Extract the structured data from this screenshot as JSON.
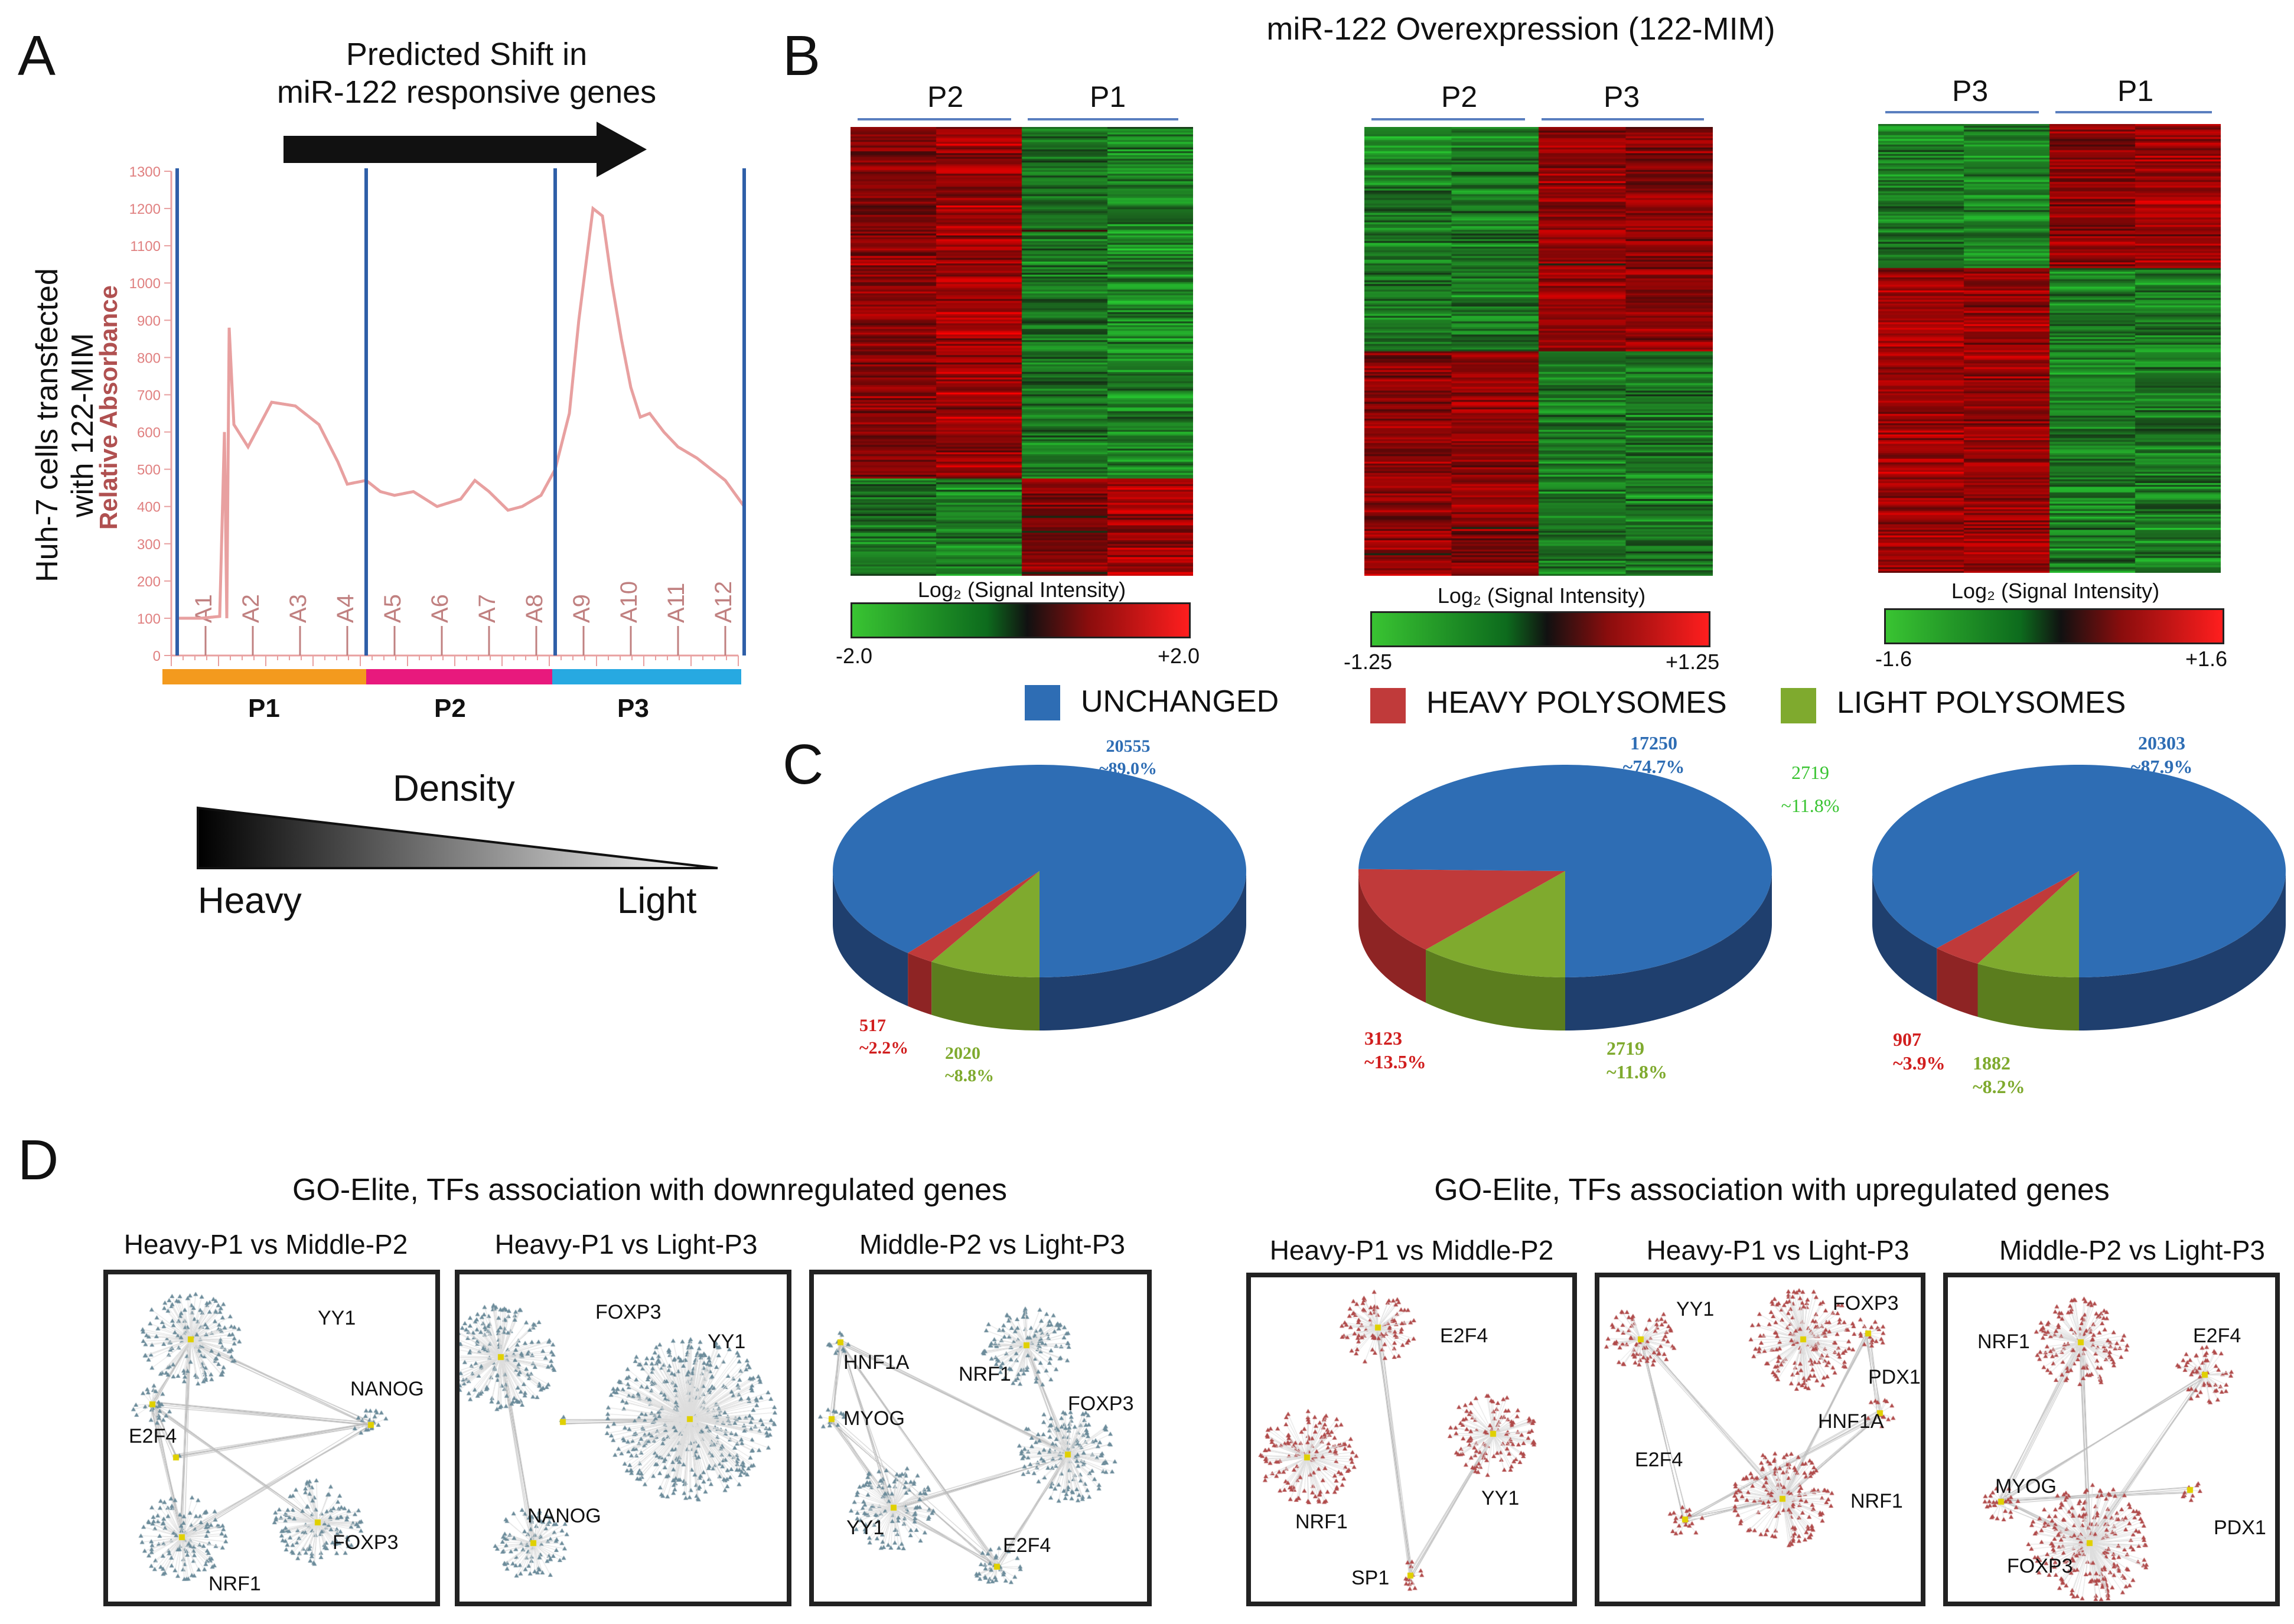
{
  "panelA": {
    "letter": "A",
    "arrow_title_line1": "Predicted Shift in",
    "arrow_title_line2": "miR-122 responsive genes",
    "ylabel_cells_line1": "Huh-7 cells transfected",
    "ylabel_cells_line2": "with 122-MIM",
    "ylabel_abs": "Relative Absorbance",
    "yticks": [
      "1300",
      "1200",
      "1100",
      "1000",
      "900",
      "800",
      "700",
      "600",
      "500",
      "400",
      "300",
      "200",
      "100",
      "0"
    ],
    "fractions": [
      "A1",
      "A2",
      "A3",
      "A4",
      "A5",
      "A6",
      "A7",
      "A8",
      "A9",
      "A10",
      "A11",
      "A12"
    ],
    "pools": [
      "P1",
      "P2",
      "P3"
    ],
    "pool_colors": [
      "#f39a1e",
      "#e8197d",
      "#27a9e1"
    ],
    "density_label": "Density",
    "heavy_label": "Heavy",
    "light_label": "Light",
    "trace_color": "#e8a0a0",
    "divider_color": "#2f5fa8",
    "chart_data": {
      "type": "line",
      "title": "",
      "ylabel": "Relative Absorbance",
      "xlabel": "",
      "ylim": [
        0,
        1300
      ],
      "categories": [
        "A1",
        "A2",
        "A3",
        "A4",
        "A5",
        "A6",
        "A7",
        "A8",
        "A9",
        "A10",
        "A11",
        "A12"
      ],
      "x": [
        0,
        0.5,
        0.9,
        1.0,
        1.05,
        1.1,
        1.2,
        1.5,
        2.0,
        2.5,
        3.0,
        3.4,
        3.6,
        4.0,
        4.3,
        4.6,
        5.0,
        5.5,
        6.0,
        6.3,
        6.6,
        7.0,
        7.3,
        7.7,
        8.0,
        8.3,
        8.5,
        8.8,
        9.0,
        9.2,
        9.4,
        9.6,
        9.8,
        10.0,
        10.3,
        10.6,
        11.0,
        11.3,
        11.6,
        12.0
      ],
      "y": [
        100,
        100,
        105,
        600,
        100,
        880,
        620,
        560,
        680,
        670,
        620,
        520,
        460,
        470,
        440,
        430,
        440,
        400,
        420,
        470,
        440,
        390,
        400,
        430,
        500,
        650,
        900,
        1200,
        1180,
        1000,
        850,
        720,
        640,
        650,
        600,
        560,
        530,
        500,
        470,
        400
      ]
    }
  },
  "panelB": {
    "letter": "B",
    "title": "miR-122 Overexpression (122-MIM)",
    "heatmaps": [
      {
        "left_label": "P2",
        "right_label": "P1",
        "scale_label": "Log₂ (Signal Intensity)",
        "min": "-2.0",
        "max": "+2.0"
      },
      {
        "left_label": "P2",
        "right_label": "P3",
        "scale_label": "Log₂ (Signal Intensity)",
        "min": "-1.25",
        "max": "+1.25"
      },
      {
        "left_label": "P3",
        "right_label": "P1",
        "scale_label": "Log₂ (Signal Intensity)",
        "min": "-1.6",
        "max": "+1.6"
      }
    ],
    "legend": [
      {
        "label": "UNCHANGED",
        "color": "#2e6db4"
      },
      {
        "label": "HEAVY POLYSOMES",
        "color": "#c03a3a"
      },
      {
        "label": "LIGHT POLYSOMES",
        "color": "#7faa2e"
      }
    ]
  },
  "panelC": {
    "letter": "C",
    "pies": [
      {
        "unchanged_n": "20555",
        "unchanged_p": "~89.0%",
        "heavy_n": "517",
        "heavy_p": "~2.2%",
        "light_n": "2020",
        "light_p": "~8.8%"
      },
      {
        "unchanged_n": "17250",
        "unchanged_p": "~74.7%",
        "heavy_n": "3123",
        "heavy_p": "~13.5%",
        "light_n": "2719",
        "light_p": "~11.8%"
      },
      {
        "unchanged_n": "20303",
        "unchanged_p": "~87.9%",
        "heavy_n": "907",
        "heavy_p": "~3.9%",
        "light_n": "1882",
        "light_p": "~8.2%"
      }
    ],
    "floating_n": "2719",
    "floating_p": "~11.8%",
    "chart_data": [
      {
        "type": "pie",
        "categories": [
          "Unchanged",
          "Heavy polysomes",
          "Light polysomes"
        ],
        "values": [
          20555,
          517,
          2020
        ],
        "percent": [
          89.0,
          2.2,
          8.8
        ]
      },
      {
        "type": "pie",
        "categories": [
          "Unchanged",
          "Heavy polysomes",
          "Light polysomes"
        ],
        "values": [
          17250,
          3123,
          2719
        ],
        "percent": [
          74.7,
          13.5,
          11.8
        ]
      },
      {
        "type": "pie",
        "categories": [
          "Unchanged",
          "Heavy polysomes",
          "Light polysomes"
        ],
        "values": [
          20303,
          907,
          1882
        ],
        "percent": [
          87.9,
          3.9,
          8.2
        ]
      }
    ]
  },
  "panelD": {
    "letter": "D",
    "down_title": "GO-Elite, TFs association with downregulated genes",
    "up_title": "GO-Elite, TFs association with upregulated genes",
    "networks": [
      {
        "title": "Heavy-P1 vs Middle-P2",
        "tfs": [
          "YY1",
          "NANOG",
          "E2F4",
          "FOXP3",
          "NRF1"
        ]
      },
      {
        "title": "Heavy-P1 vs Light-P3",
        "tfs": [
          "FOXP3",
          "YY1",
          "NANOG"
        ]
      },
      {
        "title": "Middle-P2 vs Light-P3",
        "tfs": [
          "HNF1A",
          "MYOG",
          "NRF1",
          "FOXP3",
          "YY1",
          "E2F4"
        ]
      },
      {
        "title": "Heavy-P1 vs Middle-P2",
        "tfs": [
          "E2F4",
          "NRF1",
          "YY1",
          "SP1"
        ]
      },
      {
        "title": "Heavy-P1 vs Light-P3",
        "tfs": [
          "YY1",
          "FOXP3",
          "PDX1",
          "HNF1A",
          "E2F4",
          "NRF1"
        ]
      },
      {
        "title": "Middle-P2 vs Light-P3",
        "tfs": [
          "NRF1",
          "E2F4",
          "MYOG",
          "PDX1",
          "FOXP3"
        ]
      }
    ]
  }
}
